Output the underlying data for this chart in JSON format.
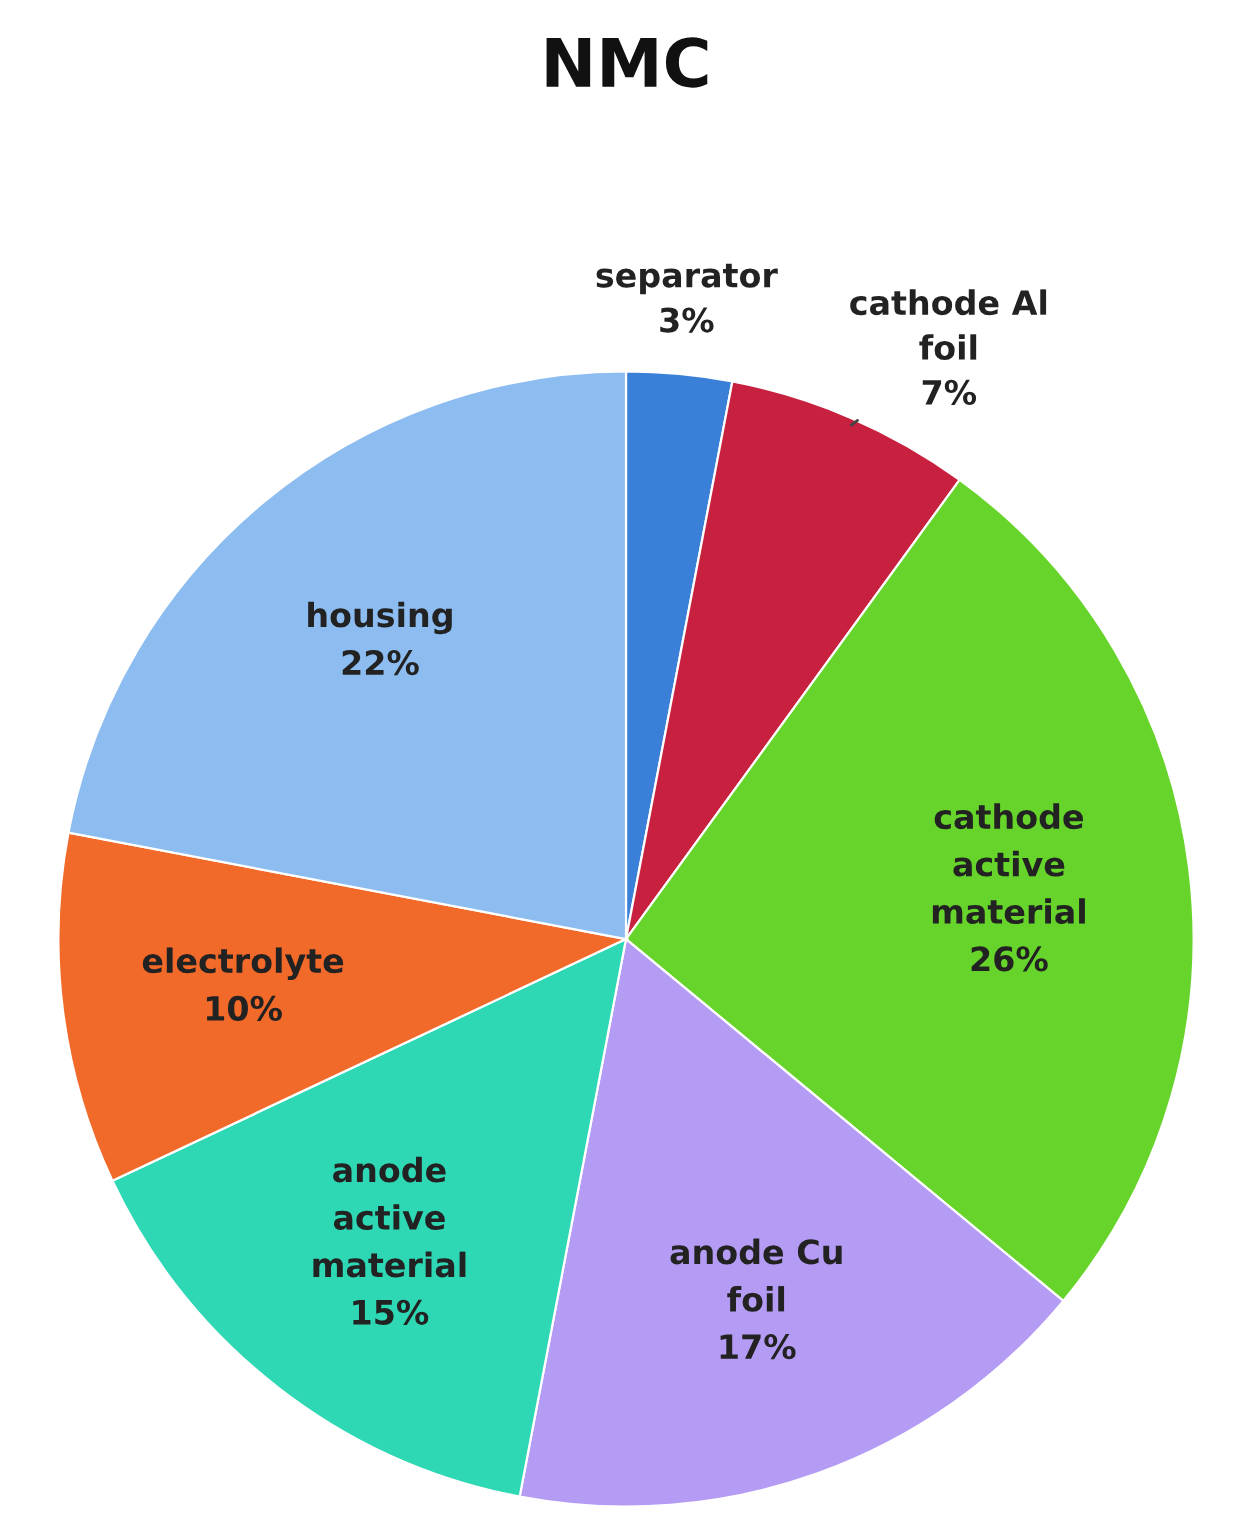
{
  "chart_data": {
    "type": "pie",
    "title": "NMC",
    "categories": [
      "separator",
      "cathode Al\nfoil",
      "cathode\nactive\nmaterial",
      "anode Cu\nfoil",
      "anode\nactive\nmaterial",
      "electrolyte",
      "housing"
    ],
    "values": [
      3,
      7,
      26,
      17,
      15,
      10,
      22
    ],
    "value_labels": [
      "3%",
      "7%",
      "26%",
      "17%",
      "15%",
      "10%",
      "22%"
    ],
    "colors": [
      "#3a7fd8",
      "#c8203f",
      "#66d42a",
      "#b49cf5",
      "#2ed8b4",
      "#f26a2a",
      "#8cbcf0"
    ]
  }
}
